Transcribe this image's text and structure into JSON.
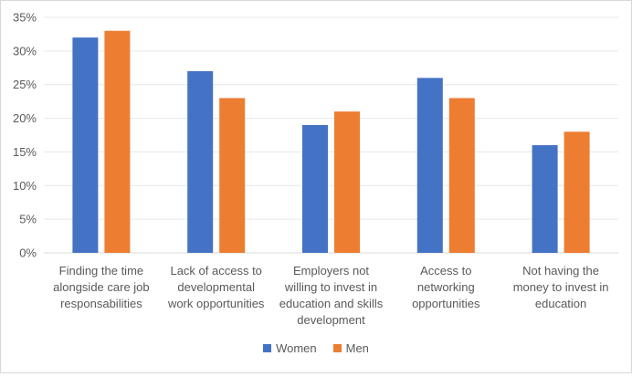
{
  "chart_data": {
    "type": "bar",
    "title": "",
    "xlabel": "",
    "ylabel": "",
    "ylim": [
      0,
      35
    ],
    "y_ticks": [
      "0%",
      "5%",
      "10%",
      "15%",
      "20%",
      "25%",
      "30%",
      "35%"
    ],
    "grid": true,
    "legend_placement": "bottom",
    "categories": [
      [
        "Finding the time",
        "alongside care job",
        "responsabilities"
      ],
      [
        "Lack of access to",
        "developmental",
        "work opportunities"
      ],
      [
        "Employers not",
        "willing to invest in",
        "education and skills",
        "development"
      ],
      [
        "Access to",
        "networking",
        "opportunities"
      ],
      [
        "Not having the",
        "money to invest in",
        "education"
      ]
    ],
    "series": [
      {
        "name": "Women",
        "color": "#4472c4",
        "values": [
          32,
          27,
          19,
          26,
          16
        ]
      },
      {
        "name": "Men",
        "color": "#ed7d31",
        "values": [
          33,
          23,
          21,
          23,
          18
        ]
      }
    ]
  }
}
